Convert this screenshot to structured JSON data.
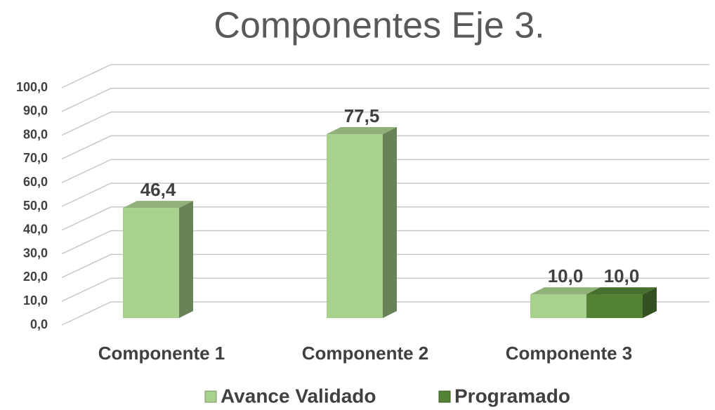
{
  "chart_data": {
    "type": "bar3d",
    "title": "Componentes Eje 3.",
    "categories": [
      "Componente 1",
      "Componente 2",
      "Componente 3"
    ],
    "series": [
      {
        "name": "Avance Validado",
        "color": "#a9d18e",
        "values": [
          46.4,
          77.5,
          10.0
        ],
        "value_labels": [
          "46,4",
          "77,5",
          "10,0"
        ]
      },
      {
        "name": "Programado",
        "color": "#548235",
        "values": [
          null,
          null,
          10.0
        ],
        "value_labels": [
          null,
          null,
          "10,0"
        ]
      }
    ],
    "ylim": [
      0,
      100
    ],
    "yticks": [
      {
        "value": 0,
        "label": "0,0"
      },
      {
        "value": 10,
        "label": "10,0"
      },
      {
        "value": 20,
        "label": "20,0"
      },
      {
        "value": 30,
        "label": "30,0"
      },
      {
        "value": 40,
        "label": "40,0"
      },
      {
        "value": 50,
        "label": "50,0"
      },
      {
        "value": 60,
        "label": "60,0"
      },
      {
        "value": 70,
        "label": "70,0"
      },
      {
        "value": 80,
        "label": "80,0"
      },
      {
        "value": 90,
        "label": "90,0"
      },
      {
        "value": 100,
        "label": "100,0"
      }
    ],
    "grid": true,
    "legend": "bottom"
  }
}
